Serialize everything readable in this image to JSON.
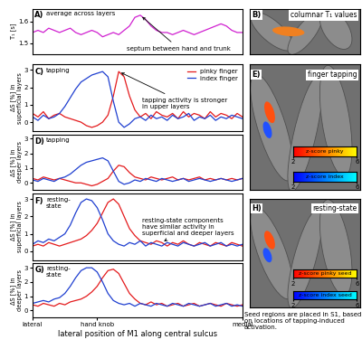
{
  "chart_data": [
    {
      "type": "line",
      "panel": "A)",
      "title": "average across layers",
      "y_label": "T₁ [s]",
      "x": [
        0,
        1,
        2,
        3,
        4,
        5,
        6,
        7,
        8,
        9,
        10,
        11,
        12,
        13,
        14,
        15,
        16,
        17,
        18,
        19,
        20,
        21,
        22,
        23,
        24,
        25,
        26,
        27,
        28,
        29,
        30,
        31,
        32,
        33,
        34,
        35,
        36,
        37,
        38,
        39
      ],
      "xlim": [
        0,
        39
      ],
      "ylim": [
        1.45,
        1.66
      ],
      "yticks": [
        1.5,
        1.6
      ],
      "tick_labels": "y",
      "annotation": "septum between hand and trunk",
      "series": [
        {
          "color": "#d020d0",
          "values": [
            1.55,
            1.56,
            1.55,
            1.57,
            1.56,
            1.55,
            1.56,
            1.57,
            1.55,
            1.54,
            1.55,
            1.56,
            1.55,
            1.53,
            1.54,
            1.55,
            1.54,
            1.56,
            1.58,
            1.62,
            1.63,
            1.61,
            1.58,
            1.56,
            1.55,
            1.55,
            1.54,
            1.55,
            1.56,
            1.55,
            1.54,
            1.55,
            1.56,
            1.57,
            1.58,
            1.59,
            1.58,
            1.56,
            1.55,
            1.55
          ]
        }
      ]
    },
    {
      "type": "image",
      "panel": "B)",
      "title": "columnar T₁ values"
    },
    {
      "type": "line",
      "panel": "C)",
      "title": "tapping",
      "y_label": "ΔS [%] in\nsuperficial layers",
      "x": [
        0,
        1,
        2,
        3,
        4,
        5,
        6,
        7,
        8,
        9,
        10,
        11,
        12,
        13,
        14,
        15,
        16,
        17,
        18,
        19,
        20,
        21,
        22,
        23,
        24,
        25,
        26,
        27,
        28,
        29,
        30,
        31,
        32,
        33,
        34,
        35,
        36,
        37,
        38,
        39
      ],
      "xlim": [
        0,
        39
      ],
      "ylim": [
        -0.5,
        3.3
      ],
      "yticks": [
        0,
        1,
        2,
        3
      ],
      "tick_labels": "y",
      "legend": "upper right",
      "annotation": "tapping activity is stronger\nin upper layers",
      "series": [
        {
          "name": "pinky finger",
          "color": "#e41a1c",
          "values": [
            0.5,
            0.3,
            0.6,
            0.2,
            0.4,
            0.5,
            0.3,
            0.2,
            0.1,
            0.0,
            -0.2,
            -0.3,
            -0.2,
            0.0,
            0.4,
            1.5,
            2.9,
            2.6,
            1.5,
            0.7,
            0.3,
            0.5,
            0.2,
            0.6,
            0.4,
            0.3,
            0.5,
            0.2,
            0.6,
            0.3,
            0.5,
            0.4,
            0.2,
            0.6,
            0.3,
            0.5,
            0.4,
            0.2,
            0.5,
            0.3
          ]
        },
        {
          "name": "index finger",
          "color": "#1f3fd0",
          "values": [
            0.3,
            0.1,
            0.4,
            0.2,
            0.3,
            0.5,
            0.9,
            1.4,
            1.9,
            2.3,
            2.5,
            2.7,
            2.8,
            2.9,
            2.6,
            1.2,
            0.0,
            -0.3,
            -0.1,
            0.2,
            0.3,
            0.1,
            0.4,
            0.2,
            0.3,
            0.1,
            0.4,
            0.2,
            0.3,
            0.5,
            0.1,
            0.3,
            0.2,
            0.4,
            0.1,
            0.3,
            0.2,
            0.4,
            0.3,
            0.2
          ]
        }
      ]
    },
    {
      "type": "line",
      "panel": "D)",
      "title": "tapping",
      "y_label": "ΔS [%] in\ndeeper layers",
      "x": [
        0,
        1,
        2,
        3,
        4,
        5,
        6,
        7,
        8,
        9,
        10,
        11,
        12,
        13,
        14,
        15,
        16,
        17,
        18,
        19,
        20,
        21,
        22,
        23,
        24,
        25,
        26,
        27,
        28,
        29,
        30,
        31,
        32,
        33,
        34,
        35,
        36,
        37,
        38,
        39
      ],
      "xlim": [
        0,
        39
      ],
      "ylim": [
        -0.5,
        3.3
      ],
      "yticks": [
        0,
        1,
        2,
        3
      ],
      "tick_labels": "y",
      "series": [
        {
          "color": "#e41a1c",
          "values": [
            0.3,
            0.2,
            0.4,
            0.3,
            0.2,
            0.3,
            0.2,
            0.1,
            0.0,
            0.0,
            -0.1,
            -0.2,
            -0.1,
            0.1,
            0.3,
            0.8,
            1.2,
            1.1,
            0.7,
            0.4,
            0.3,
            0.2,
            0.4,
            0.3,
            0.2,
            0.3,
            0.4,
            0.2,
            0.3,
            0.2,
            0.3,
            0.4,
            0.2,
            0.3,
            0.2,
            0.3,
            0.2,
            0.3,
            0.2,
            0.3
          ]
        },
        {
          "color": "#1f3fd0",
          "values": [
            0.2,
            0.1,
            0.3,
            0.2,
            0.1,
            0.3,
            0.4,
            0.6,
            0.9,
            1.2,
            1.4,
            1.5,
            1.6,
            1.7,
            1.5,
            0.8,
            0.1,
            -0.1,
            0.0,
            0.2,
            0.1,
            0.3,
            0.2,
            0.1,
            0.3,
            0.2,
            0.1,
            0.2,
            0.3,
            0.1,
            0.2,
            0.3,
            0.2,
            0.1,
            0.2,
            0.3,
            0.2,
            0.1,
            0.2,
            0.3
          ]
        }
      ]
    },
    {
      "type": "image",
      "panel": "E)",
      "title": "finger tapping",
      "colorbars": [
        {
          "label": "z-score pinky",
          "range": [
            2,
            6
          ],
          "ticks": [
            2,
            6
          ],
          "colors": [
            "#ff0000",
            "#ffff00"
          ]
        },
        {
          "label": "z-score index",
          "range": [
            2,
            6
          ],
          "ticks": [
            2,
            6
          ],
          "colors": [
            "#0000ff",
            "#00ffff"
          ]
        }
      ]
    },
    {
      "type": "line",
      "panel": "F)",
      "title": "resting-\nstate",
      "y_label": "ΔS [%] in\nsuperficial layers",
      "x": [
        0,
        1,
        2,
        3,
        4,
        5,
        6,
        7,
        8,
        9,
        10,
        11,
        12,
        13,
        14,
        15,
        16,
        17,
        18,
        19,
        20,
        21,
        22,
        23,
        24,
        25,
        26,
        27,
        28,
        29,
        30,
        31,
        32,
        33,
        34,
        35,
        36,
        37,
        38,
        39
      ],
      "xlim": [
        0,
        39
      ],
      "ylim": [
        -0.5,
        3.3
      ],
      "yticks": [
        0,
        1,
        2,
        3
      ],
      "tick_labels": "y",
      "annotation": "resting-state components\nhave similar activity in\nsuperficial and deeper layers",
      "series": [
        {
          "color": "#e41a1c",
          "values": [
            0.3,
            0.4,
            0.3,
            0.5,
            0.4,
            0.3,
            0.4,
            0.5,
            0.6,
            0.7,
            0.9,
            1.2,
            1.6,
            2.2,
            2.8,
            3.0,
            2.7,
            2.0,
            1.3,
            0.9,
            0.6,
            0.5,
            0.4,
            0.6,
            0.5,
            0.3,
            0.5,
            0.4,
            0.6,
            0.4,
            0.3,
            0.5,
            0.4,
            0.3,
            0.5,
            0.4,
            0.3,
            0.5,
            0.4,
            0.3
          ]
        },
        {
          "color": "#1f3fd0",
          "values": [
            0.4,
            0.6,
            0.5,
            0.7,
            0.6,
            0.8,
            1.0,
            1.5,
            2.2,
            2.8,
            3.0,
            2.9,
            2.5,
            1.8,
            1.0,
            0.6,
            0.4,
            0.3,
            0.5,
            0.4,
            0.6,
            0.3,
            0.5,
            0.4,
            0.3,
            0.5,
            0.4,
            0.3,
            0.5,
            0.4,
            0.3,
            0.4,
            0.5,
            0.3,
            0.4,
            0.5,
            0.3,
            0.4,
            0.3,
            0.4
          ]
        }
      ]
    },
    {
      "type": "line",
      "panel": "G)",
      "title": "resting-\nstate",
      "y_label": "ΔS [%] in\ndeeper layers",
      "x_label": "lateral position of M1 along central sulcus",
      "x": [
        0,
        1,
        2,
        3,
        4,
        5,
        6,
        7,
        8,
        9,
        10,
        11,
        12,
        13,
        14,
        15,
        16,
        17,
        18,
        19,
        20,
        21,
        22,
        23,
        24,
        25,
        26,
        27,
        28,
        29,
        30,
        31,
        32,
        33,
        34,
        35,
        36,
        37,
        38,
        39
      ],
      "xlim": [
        0,
        39
      ],
      "ylim": [
        -0.5,
        3.3
      ],
      "yticks": [
        0,
        1,
        2,
        3
      ],
      "xticks": [
        {
          "value": 0,
          "label": "lateral"
        },
        {
          "value": 12,
          "label": "hand knob"
        },
        {
          "value": 39,
          "label": "medial"
        }
      ],
      "series": [
        {
          "color": "#e41a1c",
          "values": [
            0.4,
            0.3,
            0.5,
            0.4,
            0.3,
            0.5,
            0.4,
            0.6,
            0.7,
            0.8,
            1.0,
            1.3,
            1.7,
            2.3,
            2.8,
            2.9,
            2.6,
            1.9,
            1.2,
            0.8,
            0.5,
            0.4,
            0.6,
            0.4,
            0.5,
            0.3,
            0.4,
            0.5,
            0.3,
            0.4,
            0.5,
            0.3,
            0.4,
            0.5,
            0.4,
            0.3,
            0.5,
            0.4,
            0.3,
            0.4
          ]
        },
        {
          "color": "#1f3fd0",
          "values": [
            0.5,
            0.6,
            0.7,
            0.6,
            0.8,
            0.9,
            1.2,
            1.7,
            2.3,
            2.8,
            3.0,
            3.0,
            2.7,
            2.0,
            1.2,
            0.7,
            0.5,
            0.4,
            0.5,
            0.3,
            0.5,
            0.4,
            0.3,
            0.5,
            0.4,
            0.3,
            0.5,
            0.4,
            0.3,
            0.5,
            0.4,
            0.3,
            0.4,
            0.5,
            0.3,
            0.4,
            0.5,
            0.3,
            0.4,
            0.3
          ]
        }
      ]
    },
    {
      "type": "image",
      "panel": "H)",
      "title": "resting-state",
      "caption": "Seed regions are placed in S1, based on locations of tapping-induced activation.",
      "colorbars": [
        {
          "label": "z-score pinky seed",
          "range": [
            2,
            6
          ],
          "ticks": [
            2,
            6
          ],
          "colors": [
            "#ff0000",
            "#ffff00"
          ]
        },
        {
          "label": "z-score index seed",
          "range": [
            2,
            6
          ],
          "ticks": [
            2,
            6
          ],
          "colors": [
            "#0000ff",
            "#00ffff"
          ]
        }
      ]
    }
  ]
}
